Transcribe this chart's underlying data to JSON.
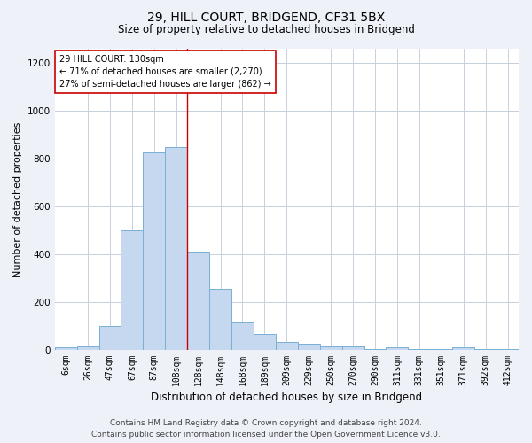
{
  "title": "29, HILL COURT, BRIDGEND, CF31 5BX",
  "subtitle": "Size of property relative to detached houses in Bridgend",
  "xlabel": "Distribution of detached houses by size in Bridgend",
  "ylabel": "Number of detached properties",
  "categories": [
    "6sqm",
    "26sqm",
    "47sqm",
    "67sqm",
    "87sqm",
    "108sqm",
    "128sqm",
    "148sqm",
    "168sqm",
    "189sqm",
    "209sqm",
    "229sqm",
    "250sqm",
    "270sqm",
    "290sqm",
    "311sqm",
    "331sqm",
    "351sqm",
    "371sqm",
    "392sqm",
    "412sqm"
  ],
  "values": [
    10,
    15,
    100,
    500,
    825,
    850,
    410,
    255,
    120,
    65,
    35,
    25,
    15,
    15,
    5,
    12,
    5,
    5,
    10,
    5,
    2
  ],
  "bar_color": "#c5d8ef",
  "bar_edge_color": "#7aafd4",
  "highlight_bar_index": 6,
  "highlight_line_color": "#cc0000",
  "annotation_text": "29 HILL COURT: 130sqm\n← 71% of detached houses are smaller (2,270)\n27% of semi-detached houses are larger (862) →",
  "annotation_box_color": "#ffffff",
  "annotation_box_edge_color": "#cc0000",
  "ylim": [
    0,
    1260
  ],
  "yticks": [
    0,
    200,
    400,
    600,
    800,
    1000,
    1200
  ],
  "footer_line1": "Contains HM Land Registry data © Crown copyright and database right 2024.",
  "footer_line2": "Contains public sector information licensed under the Open Government Licence v3.0.",
  "bg_color": "#eef2f8",
  "plot_bg_color": "#ffffff",
  "grid_color": "#c8d0df",
  "title_fontsize": 10,
  "subtitle_fontsize": 8.5,
  "ylabel_fontsize": 8,
  "xlabel_fontsize": 8.5,
  "tick_fontsize": 7,
  "annotation_fontsize": 7,
  "footer_fontsize": 6.5
}
